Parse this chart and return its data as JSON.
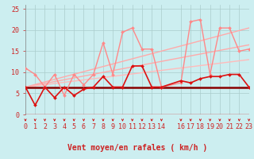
{
  "background_color": "#cceef0",
  "grid_color": "#aacccc",
  "xlabel": "Vent moyen/en rafales ( km/h )",
  "xlim": [
    0,
    23
  ],
  "ylim": [
    0,
    26
  ],
  "yticks": [
    0,
    5,
    10,
    15,
    20,
    25
  ],
  "xticks": [
    0,
    1,
    2,
    3,
    4,
    5,
    6,
    7,
    8,
    9,
    10,
    11,
    12,
    13,
    14,
    16,
    17,
    18,
    19,
    20,
    21,
    22,
    23
  ],
  "line_pink_jagged": {
    "x": [
      0,
      1,
      2,
      3,
      4,
      5,
      6,
      7,
      8,
      9,
      10,
      11,
      12,
      13,
      14,
      16,
      17,
      18,
      19,
      20,
      21,
      22,
      23
    ],
    "y": [
      11.0,
      9.5,
      6.5,
      9.5,
      4.5,
      9.5,
      7.0,
      9.5,
      17.0,
      9.5,
      19.5,
      20.5,
      15.5,
      15.5,
      6.5,
      7.5,
      22.0,
      22.5,
      9.5,
      20.5,
      20.5,
      15.0,
      15.5
    ],
    "color": "#ff8888",
    "lw": 1.0,
    "marker": "D",
    "ms": 2.0
  },
  "line_pink_smooth1": {
    "x": [
      0,
      23
    ],
    "y": [
      6.5,
      20.5
    ],
    "color": "#ffaaaa",
    "lw": 1.0
  },
  "line_pink_smooth2": {
    "x": [
      0,
      23
    ],
    "y": [
      6.5,
      16.5
    ],
    "color": "#ffaaaa",
    "lw": 1.0
  },
  "line_pink_smooth3": {
    "x": [
      0,
      23
    ],
    "y": [
      6.5,
      13.0
    ],
    "color": "#ffbbbb",
    "lw": 1.0
  },
  "line_red_jagged": {
    "x": [
      0,
      1,
      2,
      3,
      4,
      5,
      6,
      7,
      8,
      9,
      10,
      11,
      12,
      13,
      14,
      16,
      17,
      18,
      19,
      20,
      21,
      22,
      23
    ],
    "y": [
      6.5,
      2.2,
      6.5,
      4.0,
      6.5,
      4.5,
      6.0,
      6.5,
      9.0,
      6.5,
      6.5,
      11.5,
      11.5,
      6.5,
      6.5,
      8.0,
      7.5,
      8.5,
      9.0,
      9.0,
      9.5,
      9.5,
      6.5
    ],
    "color": "#dd1111",
    "lw": 1.2,
    "marker": "D",
    "ms": 2.0
  },
  "line_dark_flat": {
    "x": [
      0,
      23
    ],
    "y": [
      6.5,
      6.5
    ],
    "color": "#880000",
    "lw": 1.8
  },
  "arrow_color": "#cc0000",
  "xlabel_fontsize": 7,
  "tick_fontsize": 6,
  "tick_color": "#cc2222"
}
